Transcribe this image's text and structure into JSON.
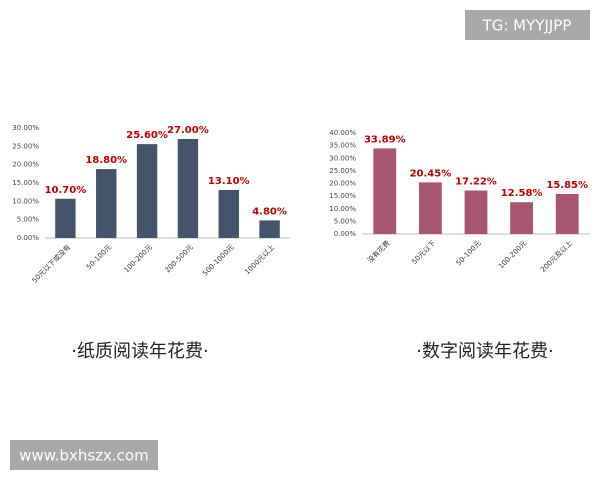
{
  "chart_data": [
    {
      "type": "bar",
      "title": "·纸质阅读年花费·",
      "categories": [
        "50元以下或没有",
        "50-100元",
        "100-200元",
        "200-500元",
        "500-1000元",
        "1000元以上"
      ],
      "values": [
        10.7,
        18.8,
        25.6,
        27.0,
        13.1,
        4.8
      ],
      "value_labels": [
        "10.70%",
        "18.80%",
        "25.60%",
        "27.00%",
        "13.10%",
        "4.80%"
      ],
      "color": "#44546a",
      "ylim": [
        0,
        30
      ],
      "yticks": [
        {
          "value": 0,
          "label": "0.00%"
        },
        {
          "value": 5,
          "label": "5.00%"
        },
        {
          "value": 10,
          "label": "10.00%"
        },
        {
          "value": 15,
          "label": "15.00%"
        },
        {
          "value": 20,
          "label": "20.00%"
        },
        {
          "value": 25,
          "label": "25.00%"
        },
        {
          "value": 30,
          "label": "30.00%"
        }
      ]
    },
    {
      "type": "bar",
      "title": "·数字阅读年花费·",
      "categories": [
        "没有花费",
        "50元以下",
        "50-100元",
        "100-200元",
        "200元及以上"
      ],
      "values": [
        33.89,
        20.45,
        17.22,
        12.58,
        15.85
      ],
      "value_labels": [
        "33.89%",
        "20.45%",
        "17.22%",
        "12.58%",
        "15.85%"
      ],
      "color": "#a6566f",
      "ylim": [
        0,
        40
      ],
      "yticks": [
        {
          "value": 0,
          "label": "0.00%"
        },
        {
          "value": 5,
          "label": "5.00%"
        },
        {
          "value": 10,
          "label": "10.00%"
        },
        {
          "value": 15,
          "label": "15.00%"
        },
        {
          "value": 20,
          "label": "20.00%"
        },
        {
          "value": 25,
          "label": "25.00%"
        },
        {
          "value": 30,
          "label": "30.00%"
        },
        {
          "value": 35,
          "label": "35.00%"
        },
        {
          "value": 40,
          "label": "40.00%"
        }
      ]
    }
  ],
  "watermarks": [
    "TG: MYYJJPP",
    "www.bxhszx.com"
  ]
}
